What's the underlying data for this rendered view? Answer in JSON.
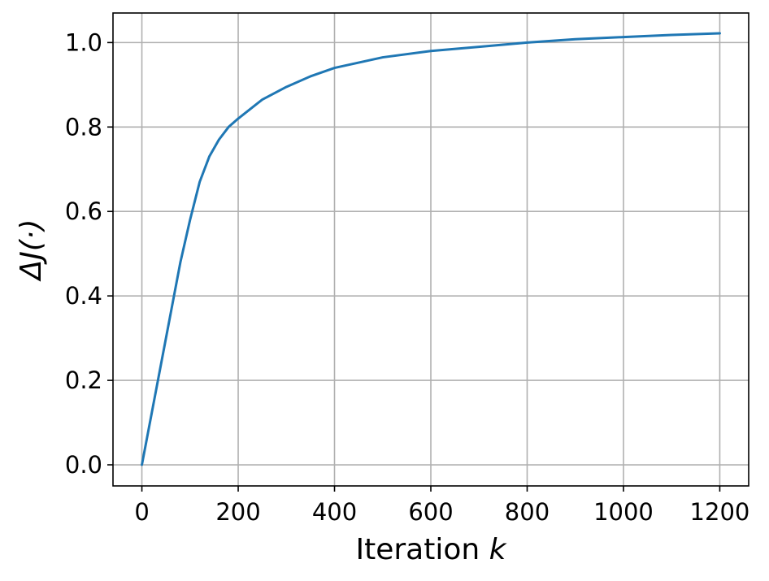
{
  "chart_data": {
    "type": "line",
    "title": "",
    "xlabel_prefix": "Iteration ",
    "xlabel_var": "k",
    "ylabel_delta": "Δ",
    "ylabel_rest": "J(·)",
    "xlim": [
      -60,
      1260
    ],
    "ylim": [
      -0.05,
      1.07
    ],
    "xticks": [
      0,
      200,
      400,
      600,
      800,
      1000,
      1200
    ],
    "xtick_labels": [
      "0",
      "200",
      "400",
      "600",
      "800",
      "1000",
      "1200"
    ],
    "yticks": [
      0.0,
      0.2,
      0.4,
      0.6,
      0.8,
      1.0
    ],
    "ytick_labels": [
      "0.0",
      "0.2",
      "0.4",
      "0.6",
      "0.8",
      "1.0"
    ],
    "grid": true,
    "series": [
      {
        "color": "#1f77b4",
        "x": [
          0,
          20,
          40,
          60,
          80,
          100,
          120,
          140,
          160,
          180,
          200,
          250,
          300,
          350,
          400,
          500,
          600,
          700,
          800,
          900,
          1000,
          1100,
          1200
        ],
        "y": [
          0.0,
          0.12,
          0.24,
          0.36,
          0.48,
          0.58,
          0.67,
          0.73,
          0.77,
          0.8,
          0.82,
          0.865,
          0.895,
          0.92,
          0.94,
          0.965,
          0.98,
          0.99,
          1.0,
          1.008,
          1.013,
          1.018,
          1.022
        ]
      }
    ]
  }
}
